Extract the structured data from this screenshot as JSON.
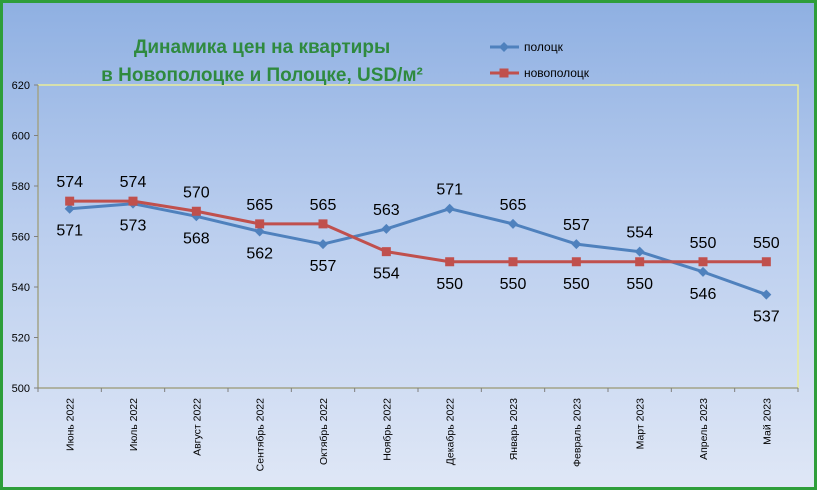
{
  "chart_data": {
    "type": "line",
    "title_line1": "Динамика цен на квартиры",
    "title_line2": "в Новополоцке и Полоцке, USD/м²",
    "xlabel": "",
    "ylabel": "",
    "ylim": [
      500,
      620
    ],
    "yticks": [
      "500",
      "520",
      "540",
      "560",
      "580",
      "600",
      "620"
    ],
    "categories": [
      "Июнь 2022",
      "Июль 2022",
      "Август 2022",
      "Сентябрь 2022",
      "Октябрь 2022",
      "Ноябрь 2022",
      "Декабрь 2022",
      "Январь 2023",
      "Февраль 2023",
      "Март 2023",
      "Апрель 2023",
      "Май 2023"
    ],
    "legend_position": "top-right",
    "grid": false,
    "series": [
      {
        "name": "полоцк",
        "color": "#4f81bd",
        "marker": "diamond",
        "values": [
          571,
          573,
          568,
          562,
          557,
          563,
          571,
          565,
          557,
          554,
          546,
          537
        ]
      },
      {
        "name": "новополоцк",
        "color": "#c0504d",
        "marker": "square",
        "values": [
          574,
          574,
          570,
          565,
          565,
          554,
          550,
          550,
          550,
          550,
          550,
          550
        ]
      }
    ]
  }
}
